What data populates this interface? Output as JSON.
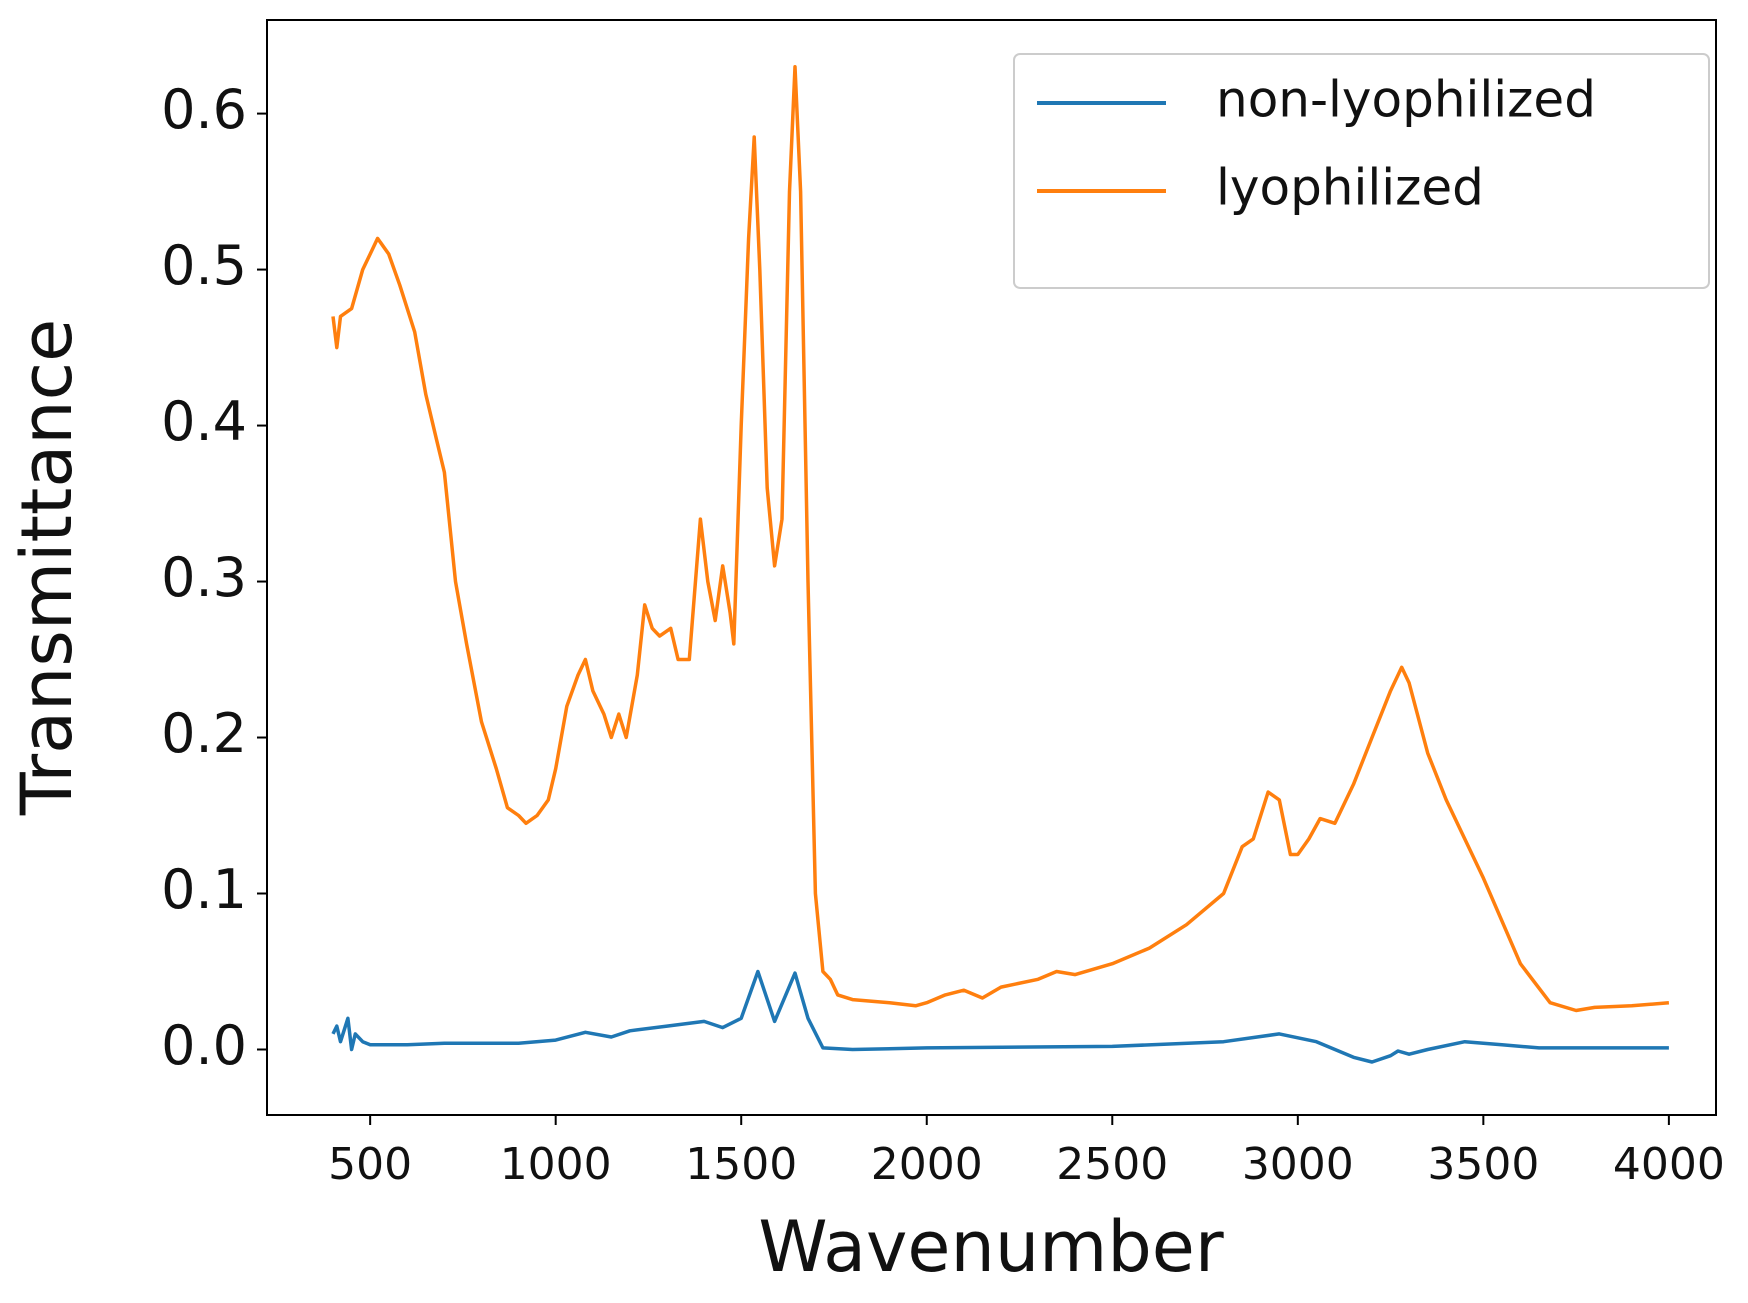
{
  "chart_data": {
    "type": "line",
    "xlabel": "Wavenumber",
    "ylabel": "Transmittance",
    "xlim": [
      222,
      4127
    ],
    "ylim": [
      -0.042,
      0.66
    ],
    "xticks": [
      500,
      1000,
      1500,
      2000,
      2500,
      3000,
      3500,
      4000
    ],
    "yticks": [
      {
        "value": 0,
        "label": "0.0"
      },
      0.1,
      0.2,
      0.3,
      0.4,
      0.5,
      0.6
    ],
    "legend": "upper right",
    "series": [
      {
        "name": "non-lyophilized",
        "color": "#1f77b4",
        "x": [
          400,
          410,
          420,
          440,
          450,
          460,
          480,
          500,
          600,
          700,
          800,
          900,
          1000,
          1080,
          1150,
          1200,
          1300,
          1400,
          1450,
          1500,
          1545,
          1590,
          1645,
          1680,
          1720,
          1800,
          2000,
          2500,
          2800,
          2950,
          3050,
          3150,
          3200,
          3250,
          3270,
          3300,
          3350,
          3450,
          3550,
          3650,
          4000
        ],
        "values": [
          0.01,
          0.015,
          0.005,
          0.02,
          0.0,
          0.01,
          0.005,
          0.003,
          0.003,
          0.004,
          0.004,
          0.004,
          0.006,
          0.011,
          0.008,
          0.012,
          0.015,
          0.018,
          0.014,
          0.02,
          0.05,
          0.018,
          0.049,
          0.02,
          0.001,
          0.0,
          0.001,
          0.002,
          0.005,
          0.01,
          0.005,
          -0.005,
          -0.008,
          -0.004,
          -0.001,
          -0.003,
          0.0,
          0.005,
          0.003,
          0.001,
          0.001
        ]
      },
      {
        "name": "lyophilized",
        "color": "#ff7f0e",
        "x": [
          400,
          410,
          420,
          450,
          480,
          500,
          520,
          550,
          580,
          620,
          650,
          680,
          700,
          730,
          760,
          800,
          840,
          870,
          900,
          920,
          950,
          980,
          1000,
          1030,
          1060,
          1080,
          1100,
          1130,
          1150,
          1170,
          1190,
          1220,
          1240,
          1260,
          1280,
          1310,
          1330,
          1360,
          1390,
          1410,
          1430,
          1450,
          1470,
          1480,
          1500,
          1520,
          1535,
          1550,
          1570,
          1590,
          1610,
          1630,
          1645,
          1660,
          1680,
          1700,
          1720,
          1740,
          1760,
          1800,
          1900,
          1970,
          2000,
          2050,
          2100,
          2150,
          2200,
          2300,
          2350,
          2400,
          2500,
          2600,
          2700,
          2800,
          2850,
          2880,
          2920,
          2950,
          2980,
          3000,
          3030,
          3060,
          3100,
          3150,
          3200,
          3250,
          3280,
          3300,
          3350,
          3400,
          3500,
          3600,
          3680,
          3750,
          3800,
          3900,
          4000
        ],
        "values": [
          0.47,
          0.45,
          0.47,
          0.475,
          0.5,
          0.51,
          0.52,
          0.51,
          0.49,
          0.46,
          0.42,
          0.39,
          0.37,
          0.3,
          0.26,
          0.21,
          0.18,
          0.155,
          0.15,
          0.145,
          0.15,
          0.16,
          0.18,
          0.22,
          0.24,
          0.25,
          0.23,
          0.215,
          0.2,
          0.215,
          0.2,
          0.24,
          0.285,
          0.27,
          0.265,
          0.27,
          0.25,
          0.25,
          0.34,
          0.3,
          0.275,
          0.31,
          0.28,
          0.26,
          0.4,
          0.52,
          0.585,
          0.5,
          0.36,
          0.31,
          0.34,
          0.55,
          0.63,
          0.55,
          0.3,
          0.1,
          0.05,
          0.045,
          0.035,
          0.032,
          0.03,
          0.028,
          0.03,
          0.035,
          0.038,
          0.033,
          0.04,
          0.045,
          0.05,
          0.048,
          0.055,
          0.065,
          0.08,
          0.1,
          0.13,
          0.135,
          0.165,
          0.16,
          0.125,
          0.125,
          0.135,
          0.148,
          0.145,
          0.17,
          0.2,
          0.23,
          0.245,
          0.235,
          0.19,
          0.16,
          0.11,
          0.055,
          0.03,
          0.025,
          0.027,
          0.028,
          0.03
        ]
      }
    ]
  }
}
